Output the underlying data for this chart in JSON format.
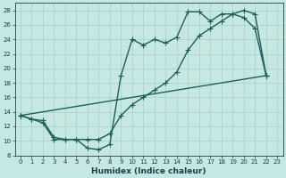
{
  "xlabel": "Humidex (Indice chaleur)",
  "xlim": [
    -0.5,
    23.5
  ],
  "ylim": [
    8,
    29
  ],
  "xticks": [
    0,
    1,
    2,
    3,
    4,
    5,
    6,
    7,
    8,
    9,
    10,
    11,
    12,
    13,
    14,
    15,
    16,
    17,
    18,
    19,
    20,
    21,
    22,
    23
  ],
  "yticks": [
    8,
    10,
    12,
    14,
    16,
    18,
    20,
    22,
    24,
    26,
    28
  ],
  "bg_color": "#c6e8e2",
  "grid_color": "#a8cec8",
  "line_color": "#1a6058",
  "line1_x": [
    0,
    1,
    2,
    3,
    4,
    5,
    6,
    7,
    8,
    9,
    10,
    11,
    12,
    13,
    14,
    15,
    16,
    17,
    18,
    19,
    20,
    21,
    22
  ],
  "line1_y": [
    13.5,
    13.0,
    12.5,
    10.2,
    10.2,
    10.2,
    9.0,
    8.8,
    9.5,
    19.0,
    24.0,
    23.2,
    24.0,
    23.5,
    24.3,
    27.8,
    27.8,
    26.5,
    27.5,
    27.5,
    27.0,
    25.5,
    19.0
  ],
  "line2_x": [
    0,
    1,
    2,
    3,
    4,
    5,
    6,
    7,
    8,
    9,
    10,
    11,
    12,
    13,
    14,
    15,
    16,
    17,
    18,
    19,
    20,
    21,
    22
  ],
  "line2_y": [
    13.5,
    13.0,
    12.8,
    10.5,
    10.2,
    10.2,
    10.2,
    10.2,
    11.0,
    13.5,
    15.0,
    16.0,
    17.0,
    18.0,
    19.5,
    22.5,
    24.5,
    25.5,
    26.5,
    27.5,
    28.0,
    27.5,
    19.0
  ],
  "line3_x": [
    0,
    22
  ],
  "line3_y": [
    13.5,
    19.0
  ],
  "marker": "+",
  "markersize": 4,
  "linewidth": 1.0,
  "tick_fontsize": 5,
  "xlabel_fontsize": 6.5
}
